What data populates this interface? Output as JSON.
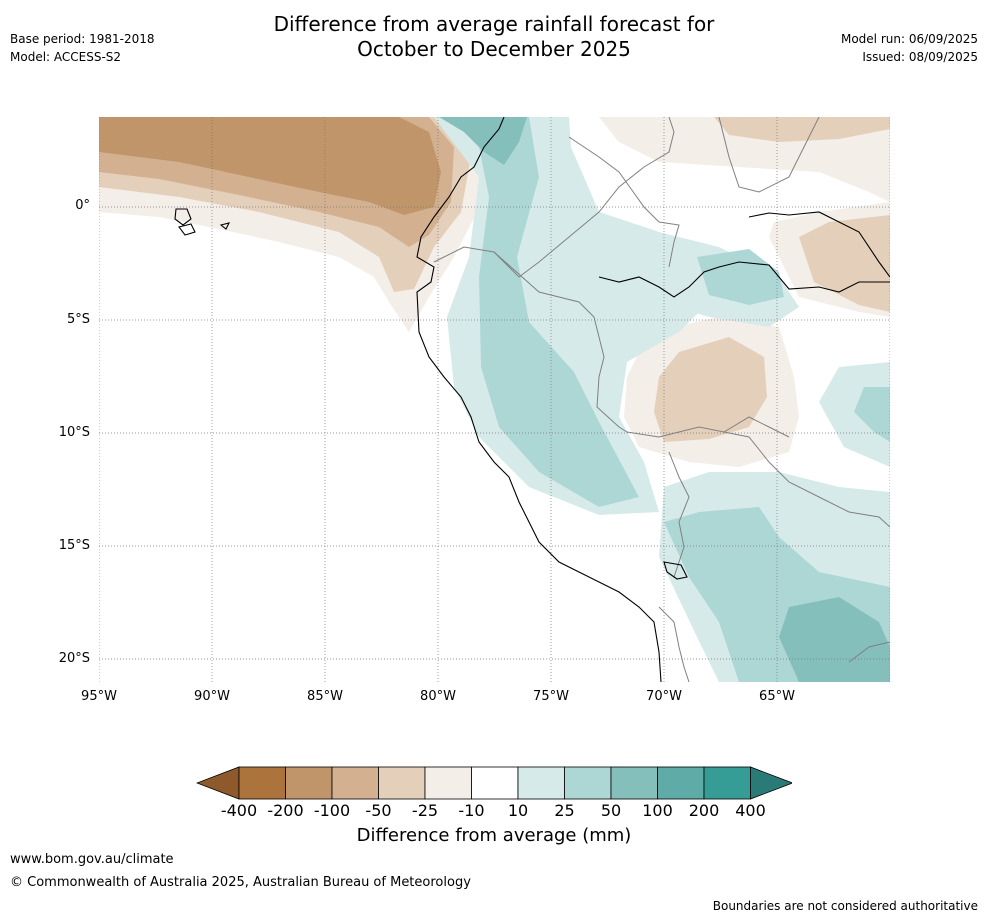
{
  "header": {
    "title_line1": "Difference from average rainfall forecast for",
    "title_line2": "October to December 2025",
    "base_period": "Base period: 1981-2018",
    "model": "Model: ACCESS-S2",
    "model_run": "Model run: 06/09/2025",
    "issued": "Issued: 08/09/2025"
  },
  "map": {
    "lat_labels": [
      "0°",
      "5°S",
      "10°S",
      "15°S",
      "20°S"
    ],
    "lon_labels": [
      "95°W",
      "90°W",
      "85°W",
      "80°W",
      "75°W",
      "70°W",
      "65°W"
    ],
    "gridlines": true,
    "colors": {
      "dry_strong": "#c0956a",
      "dry_mid": "#d3b190",
      "dry_light": "#e4cfbb",
      "dry_faint": "#f3eee8",
      "neutral": "#ffffff",
      "wet_faint": "#d6ebe9",
      "wet_light": "#add7d5",
      "wet_mid": "#85bfbc",
      "coastline": "#000000",
      "borders": "#808080"
    }
  },
  "colorbar": {
    "title": "Difference from average (mm)",
    "ticks": [
      "-400",
      "-200",
      "-100",
      "-50",
      "-25",
      "-10",
      "10",
      "25",
      "50",
      "100",
      "200",
      "400"
    ],
    "colors": [
      "#8e5a2b",
      "#ad733c",
      "#c0956a",
      "#d3b190",
      "#e4cfbb",
      "#f3eee8",
      "#ffffff",
      "#d6ebe9",
      "#add7d5",
      "#85bfbc",
      "#5eaba7",
      "#359c96",
      "#2a7b77"
    ]
  },
  "footer": {
    "url": "www.bom.gov.au/climate",
    "copyright": "© Commonwealth of Australia 2025, Australian Bureau of Meteorology",
    "disclaimer": "Boundaries are not considered authoritative"
  }
}
